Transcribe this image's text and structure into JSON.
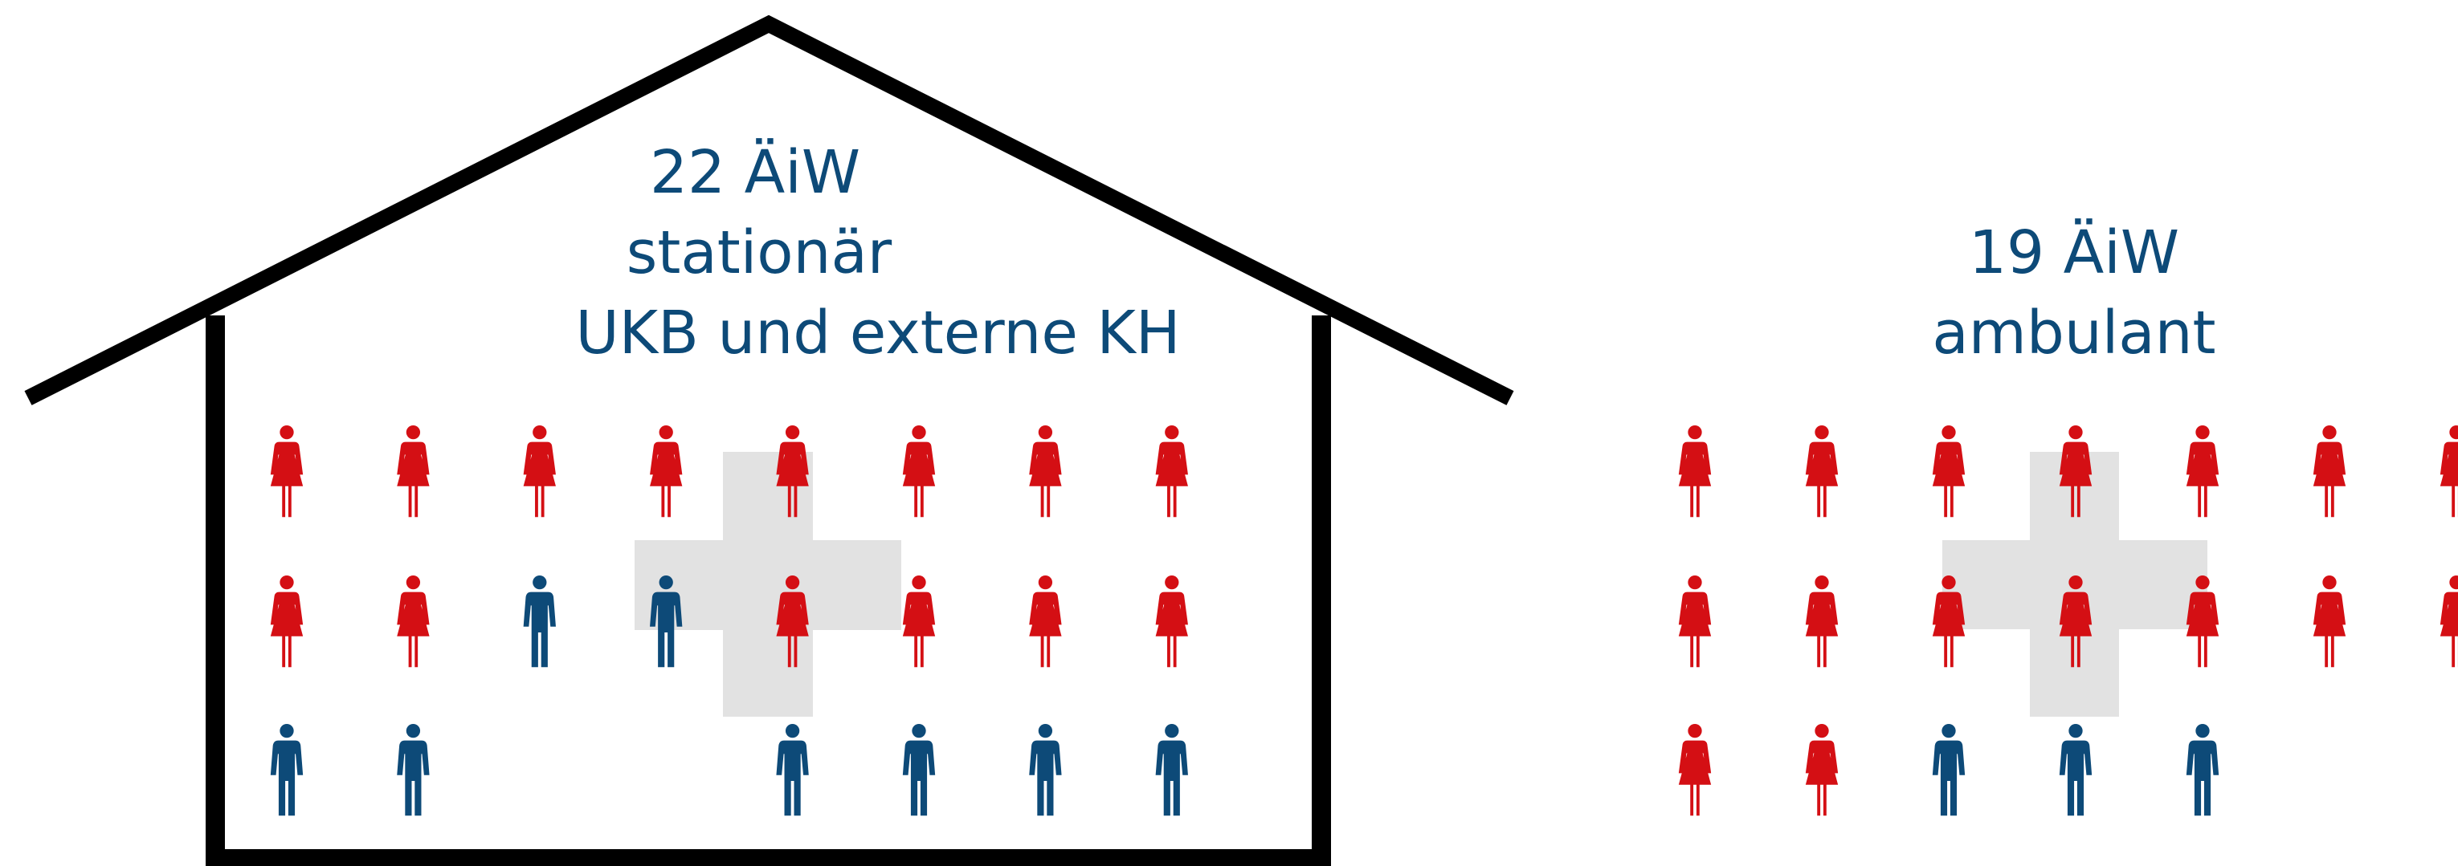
{
  "colors": {
    "female": "#d40f14",
    "male": "#0d4a78",
    "text": "#0d4a78",
    "cross": "#e2e2e2",
    "outline": "#000000"
  },
  "stationaer": {
    "line1": "22 ÄiW",
    "line2": "stationär",
    "line3": "UKB und externe KH",
    "female_count": 14,
    "male_count": 8,
    "rows": [
      [
        "female",
        "female",
        "female",
        "female",
        "female",
        "female",
        "female",
        "female"
      ],
      [
        "female",
        "female",
        "male",
        "male",
        "female",
        "female",
        "female",
        "female"
      ],
      [
        "male",
        "male",
        null,
        null,
        "male",
        "male",
        "male",
        "male"
      ]
    ]
  },
  "ambulant": {
    "line1": "19 ÄiW",
    "line2": "ambulant",
    "female_count": 16,
    "male_count": 3,
    "rows": [
      [
        "female",
        "female",
        "female",
        "female",
        "female",
        "female",
        "female"
      ],
      [
        "female",
        "female",
        "female",
        "female",
        "female",
        "female",
        "female"
      ],
      [
        "female",
        "female",
        "male",
        "male",
        "male"
      ]
    ]
  }
}
